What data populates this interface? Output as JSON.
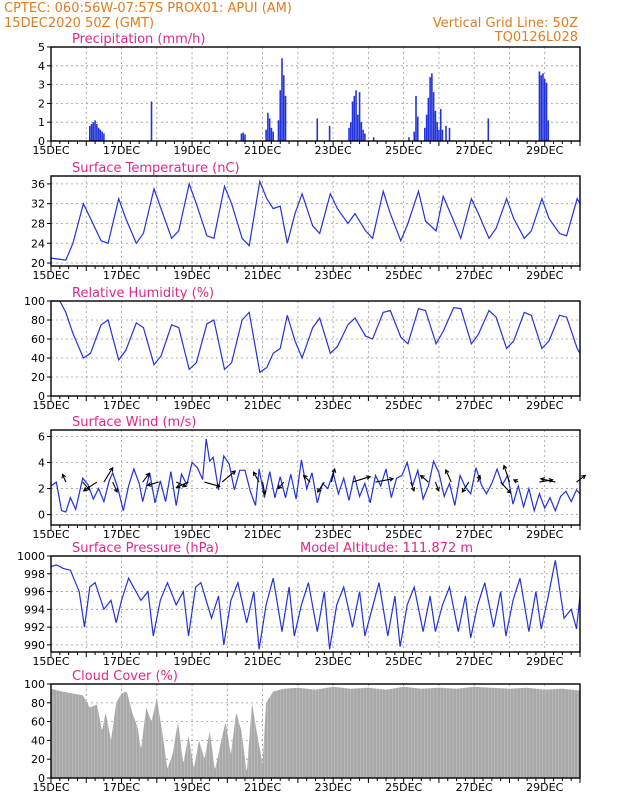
{
  "header": {
    "line1_left": "CPTEC:   060:56W-07:57S   PROX01: APUI (AM)",
    "line2_left": "15DEC2020 50Z (GMT)",
    "line1_right": "Vertical Grid Line: 50Z",
    "line2_right": "TQ0126L028"
  },
  "colors": {
    "series": "#2233dd",
    "title": "#e0288a",
    "header": "#e07d1f",
    "cloud": "#a8a8a8",
    "arrow": "#000000"
  },
  "x_axis": {
    "labels": [
      "15DEC",
      "17DEC",
      "19DEC",
      "21DEC",
      "23DEC",
      "25DEC",
      "27DEC",
      "29DEC"
    ],
    "start_day": 15,
    "end_day": 30
  },
  "chart_data": [
    {
      "id": "precip",
      "type": "bar",
      "title": "Precipitation (mm/h)",
      "ylim": [
        0,
        5
      ],
      "yticks": [
        0,
        1,
        2,
        3,
        4,
        5
      ],
      "day": [
        15.1,
        16.1,
        16.15,
        16.2,
        16.25,
        16.3,
        16.35,
        16.4,
        16.45,
        16.5,
        17.85,
        20.4,
        20.45,
        20.5,
        21.1,
        21.15,
        21.2,
        21.25,
        21.3,
        21.45,
        21.5,
        21.55,
        21.6,
        21.65,
        22.55,
        22.9,
        23.45,
        23.5,
        23.55,
        23.6,
        23.65,
        23.7,
        23.75,
        23.8,
        23.85,
        23.9,
        24.15,
        25.15,
        25.3,
        25.35,
        25.4,
        25.6,
        25.65,
        25.7,
        25.75,
        25.8,
        25.85,
        25.9,
        25.95,
        26.0,
        26.05,
        26.1,
        26.2,
        26.3,
        27.4,
        28.85,
        28.9,
        28.95,
        29.0,
        29.05,
        29.1
      ],
      "values": [
        0.05,
        0.8,
        0.9,
        1.0,
        1.1,
        0.9,
        0.7,
        0.6,
        0.5,
        0.4,
        2.1,
        0.4,
        0.45,
        0.35,
        0.6,
        1.5,
        1.2,
        0.7,
        0.5,
        1.1,
        2.7,
        4.4,
        3.5,
        2.4,
        1.2,
        0.8,
        0.7,
        1.0,
        2.1,
        2.4,
        2.7,
        1.4,
        2.6,
        1.0,
        0.6,
        0.4,
        0.2,
        0.2,
        0.5,
        2.4,
        1.3,
        0.7,
        1.4,
        2.3,
        3.4,
        3.6,
        2.6,
        1.6,
        1.0,
        0.6,
        1.7,
        0.6,
        0.8,
        0.7,
        1.2,
        3.7,
        3.5,
        3.6,
        3.3,
        3.1,
        1.1
      ]
    },
    {
      "id": "temp",
      "type": "line",
      "title": "Surface Temperature (nC)",
      "ylim": [
        19.4,
        37.6
      ],
      "yticks": [
        20,
        24,
        28,
        32,
        36
      ],
      "day": [
        15.0,
        15.42,
        15.62,
        15.92,
        16.12,
        16.42,
        16.62,
        16.92,
        17.12,
        17.42,
        17.62,
        17.92,
        18.12,
        18.42,
        18.62,
        18.92,
        19.12,
        19.42,
        19.62,
        19.92,
        20.12,
        20.42,
        20.62,
        20.92,
        21.12,
        21.3,
        21.5,
        21.7,
        21.92,
        22.12,
        22.42,
        22.62,
        22.92,
        23.12,
        23.42,
        23.62,
        23.92,
        24.12,
        24.42,
        24.62,
        24.92,
        25.12,
        25.42,
        25.62,
        25.92,
        26.12,
        26.42,
        26.62,
        26.92,
        27.12,
        27.42,
        27.62,
        27.92,
        28.12,
        28.42,
        28.62,
        28.92,
        29.12,
        29.42,
        29.62,
        29.92,
        30.0
      ],
      "values": [
        21.0,
        20.6,
        24.0,
        32.0,
        29.0,
        24.5,
        24.0,
        33.0,
        29.0,
        24.0,
        26.0,
        35.0,
        31.0,
        25.0,
        26.5,
        36.0,
        32.0,
        25.5,
        25.0,
        35.5,
        32.0,
        25.0,
        23.5,
        36.5,
        33.0,
        31.0,
        31.5,
        24.0,
        30.0,
        34.0,
        27.5,
        26.0,
        34.0,
        31.0,
        28.0,
        30.0,
        26.5,
        25.0,
        34.5,
        30.0,
        24.5,
        28.0,
        34.5,
        28.5,
        26.5,
        33.5,
        28.5,
        25.0,
        33.0,
        30.0,
        25.0,
        27.0,
        33.0,
        29.0,
        25.0,
        26.5,
        33.0,
        29.0,
        26.0,
        25.5,
        33.0,
        32.0
      ]
    },
    {
      "id": "rh",
      "type": "line",
      "title": "Relative Humidity (%)",
      "ylim": [
        0,
        100
      ],
      "yticks": [
        0,
        20,
        40,
        60,
        80,
        100
      ],
      "day": [
        15.0,
        15.25,
        15.42,
        15.62,
        15.92,
        16.12,
        16.42,
        16.62,
        16.92,
        17.12,
        17.42,
        17.62,
        17.92,
        18.12,
        18.42,
        18.62,
        18.92,
        19.12,
        19.42,
        19.62,
        19.92,
        20.12,
        20.42,
        20.62,
        20.92,
        21.12,
        21.3,
        21.5,
        21.7,
        21.92,
        22.12,
        22.42,
        22.62,
        22.92,
        23.12,
        23.42,
        23.62,
        23.92,
        24.12,
        24.42,
        24.62,
        24.92,
        25.12,
        25.42,
        25.62,
        25.92,
        26.12,
        26.42,
        26.62,
        26.92,
        27.12,
        27.42,
        27.62,
        27.92,
        28.12,
        28.42,
        28.62,
        28.92,
        29.12,
        29.42,
        29.62,
        29.92,
        30.0
      ],
      "values": [
        100,
        100,
        88,
        66,
        40,
        45,
        75,
        80,
        38,
        48,
        77,
        72,
        33,
        42,
        75,
        72,
        28,
        35,
        76,
        80,
        28,
        35,
        80,
        88,
        25,
        30,
        45,
        50,
        85,
        58,
        40,
        72,
        82,
        45,
        52,
        75,
        82,
        63,
        60,
        88,
        90,
        62,
        55,
        92,
        90,
        55,
        68,
        93,
        92,
        55,
        65,
        90,
        83,
        50,
        58,
        88,
        85,
        50,
        58,
        85,
        83,
        50,
        45
      ]
    },
    {
      "id": "wind",
      "type": "line",
      "title": "Surface Wind (m/s)",
      "ylim": [
        -0.8,
        6.5
      ],
      "yticks": [
        0,
        2,
        4,
        6
      ],
      "day": [
        15.0,
        15.15,
        15.3,
        15.42,
        15.55,
        15.7,
        15.9,
        16.05,
        16.2,
        16.35,
        16.5,
        16.65,
        16.75,
        16.9,
        17.05,
        17.2,
        17.35,
        17.5,
        17.6,
        17.8,
        17.95,
        18.1,
        18.25,
        18.4,
        18.55,
        18.7,
        18.85,
        19.0,
        19.15,
        19.3,
        19.4,
        19.5,
        19.6,
        19.75,
        19.9,
        20.05,
        20.2,
        20.35,
        20.5,
        20.65,
        20.8,
        20.9,
        21.05,
        21.2,
        21.35,
        21.5,
        21.65,
        21.8,
        21.95,
        22.1,
        22.25,
        22.4,
        22.55,
        22.7,
        22.85,
        23.0,
        23.15,
        23.3,
        23.45,
        23.6,
        23.75,
        23.9,
        24.05,
        24.2,
        24.35,
        24.5,
        24.65,
        24.8,
        24.95,
        25.1,
        25.25,
        25.4,
        25.55,
        25.7,
        25.85,
        26.0,
        26.15,
        26.3,
        26.45,
        26.6,
        26.75,
        26.9,
        27.05,
        27.2,
        27.35,
        27.5,
        27.65,
        27.8,
        27.95,
        28.1,
        28.25,
        28.4,
        28.55,
        28.7,
        28.85,
        29.0,
        29.15,
        29.3,
        29.45,
        29.6,
        29.75,
        29.9,
        30.0
      ],
      "values": [
        2.2,
        2.5,
        0.3,
        0.2,
        1.3,
        0.4,
        2.8,
        2.3,
        1.2,
        2.0,
        1.0,
        2.6,
        3.2,
        2.0,
        0.3,
        2.2,
        3.5,
        2.4,
        1.0,
        3.2,
        0.9,
        2.6,
        1.0,
        3.3,
        0.7,
        3.1,
        2.3,
        4.0,
        3.6,
        2.7,
        5.8,
        4.1,
        4.4,
        1.9,
        4.5,
        3.9,
        1.9,
        3.4,
        3.4,
        1.8,
        0.7,
        3.5,
        1.3,
        3.3,
        1.3,
        2.9,
        1.3,
        3.1,
        1.2,
        4.2,
        2.0,
        3.2,
        0.9,
        2.4,
        2.0,
        3.2,
        1.6,
        2.8,
        1.1,
        3.0,
        1.4,
        2.4,
        0.9,
        3.0,
        2.2,
        3.5,
        1.3,
        2.8,
        3.0,
        4.0,
        2.2,
        3.4,
        1.2,
        2.2,
        4.1,
        3.2,
        1.4,
        2.4,
        0.7,
        3.0,
        2.1,
        1.6,
        3.6,
        2.3,
        1.6,
        2.4,
        3.5,
        2.3,
        3.0,
        0.8,
        2.2,
        0.6,
        2.0,
        0.3,
        1.6,
        0.5,
        1.3,
        0.3,
        1.4,
        1.8,
        1.0,
        1.9,
        1.6
      ],
      "arrows_day": [
        15.42,
        15.9,
        16.3,
        16.5,
        16.75,
        17.6,
        18.05,
        18.55,
        18.9,
        19.35,
        19.85,
        20.9,
        21.0,
        21.6,
        22.35,
        22.75,
        22.95,
        23.55,
        24.2,
        25.2,
        25.7,
        25.9,
        26.35,
        26.85,
        27.1,
        27.75,
        28.0,
        28.25,
        28.85,
        29.3,
        29.9
      ],
      "arrows_u": [
        -0.3,
        0.6,
        -1.2,
        0.8,
        0.4,
        0.6,
        -1.0,
        0.9,
        -1.1,
        1.4,
        1.2,
        -0.5,
        0.2,
        -0.5,
        -0.6,
        -0.6,
        0.3,
        1.6,
        1.6,
        0.3,
        -0.7,
        0.3,
        -0.5,
        -0.6,
        0.2,
        0.9,
        -0.5,
        -0.4,
        1.2,
        -1.3,
        0.8
      ],
      "arrows_v": [
        0.7,
        -0.7,
        -0.8,
        1.3,
        -0.9,
        0.8,
        -0.3,
        -0.4,
        -0.5,
        -0.4,
        1.0,
        0.9,
        -1.1,
        -0.6,
        0.6,
        -0.9,
        1.2,
        0.5,
        0.3,
        -0.8,
        0.6,
        -0.8,
        1.1,
        -0.9,
        0.6,
        -1.0,
        1.5,
        0.2,
        0.2,
        0.3,
        0.6
      ]
    },
    {
      "id": "pres",
      "type": "line",
      "title": "Surface Pressure (hPa)",
      "note": "Model Altitude: 111.872 m",
      "ylim": [
        989.2,
        1000
      ],
      "yticks": [
        990,
        992,
        994,
        996,
        998,
        1000
      ],
      "day": [
        15.0,
        15.15,
        15.35,
        15.55,
        15.8,
        15.95,
        16.1,
        16.25,
        16.5,
        16.7,
        16.85,
        17.0,
        17.2,
        17.55,
        17.75,
        17.9,
        18.1,
        18.3,
        18.55,
        18.75,
        18.9,
        19.1,
        19.25,
        19.55,
        19.75,
        19.9,
        20.1,
        20.3,
        20.55,
        20.75,
        20.9,
        21.1,
        21.3,
        21.55,
        21.75,
        21.9,
        22.1,
        22.3,
        22.55,
        22.75,
        22.9,
        23.1,
        23.3,
        23.55,
        23.75,
        23.9,
        24.1,
        24.3,
        24.55,
        24.75,
        24.9,
        25.1,
        25.3,
        25.55,
        25.75,
        25.9,
        26.1,
        26.3,
        26.55,
        26.75,
        26.9,
        27.1,
        27.3,
        27.55,
        27.75,
        27.9,
        28.1,
        28.3,
        28.55,
        28.75,
        28.9,
        29.1,
        29.3,
        29.55,
        29.75,
        29.9,
        30.0
      ],
      "values": [
        998.8,
        999.0,
        998.6,
        998.4,
        996.0,
        992.0,
        996.5,
        997.0,
        994.0,
        995.0,
        992.5,
        995.0,
        997.5,
        995.0,
        996.0,
        991.0,
        995.0,
        997.0,
        994.5,
        996.0,
        991.0,
        996.5,
        997.0,
        993.0,
        995.5,
        990.0,
        995.0,
        997.0,
        992.5,
        996.0,
        989.5,
        994.5,
        997.5,
        991.5,
        996.5,
        991.0,
        994.5,
        997.0,
        991.5,
        996.0,
        989.5,
        994.5,
        996.5,
        992.0,
        996.0,
        991.0,
        994.0,
        997.0,
        991.0,
        995.5,
        989.8,
        994.5,
        996.5,
        991.5,
        995.5,
        991.5,
        994.5,
        996.5,
        991.5,
        995.5,
        990.8,
        994.5,
        997.0,
        992.0,
        996.0,
        991.0,
        995.0,
        997.5,
        991.5,
        996.0,
        991.8,
        995.5,
        999.5,
        993.0,
        994.0,
        991.8,
        995.5
      ]
    },
    {
      "id": "cloud",
      "type": "area",
      "title": "Cloud Cover (%)",
      "ylim": [
        0,
        100
      ],
      "yticks": [
        0,
        20,
        40,
        60,
        80,
        100
      ],
      "day": [
        15.0,
        15.3,
        15.6,
        15.9,
        16.1,
        16.3,
        16.45,
        16.55,
        16.7,
        16.85,
        17.0,
        17.15,
        17.3,
        17.45,
        17.55,
        17.7,
        17.85,
        18.0,
        18.15,
        18.3,
        18.45,
        18.6,
        18.75,
        18.9,
        19.05,
        19.2,
        19.35,
        19.5,
        19.65,
        19.8,
        19.95,
        20.1,
        20.25,
        20.4,
        20.55,
        20.7,
        20.85,
        21.0,
        21.1,
        21.3,
        21.6,
        22.0,
        22.5,
        23.0,
        23.5,
        24.0,
        24.5,
        25.0,
        25.5,
        26.0,
        26.5,
        27.0,
        27.5,
        28.0,
        28.5,
        29.0,
        29.5,
        30.0
      ],
      "values": [
        95,
        92,
        90,
        88,
        75,
        78,
        50,
        70,
        40,
        80,
        90,
        92,
        70,
        55,
        30,
        75,
        60,
        85,
        50,
        10,
        25,
        60,
        15,
        45,
        10,
        40,
        20,
        50,
        8,
        35,
        60,
        25,
        70,
        50,
        5,
        80,
        45,
        15,
        80,
        92,
        95,
        96,
        94,
        97,
        95,
        96,
        94,
        97,
        95,
        96,
        95,
        97,
        96,
        95,
        96,
        94,
        95,
        93
      ]
    }
  ]
}
